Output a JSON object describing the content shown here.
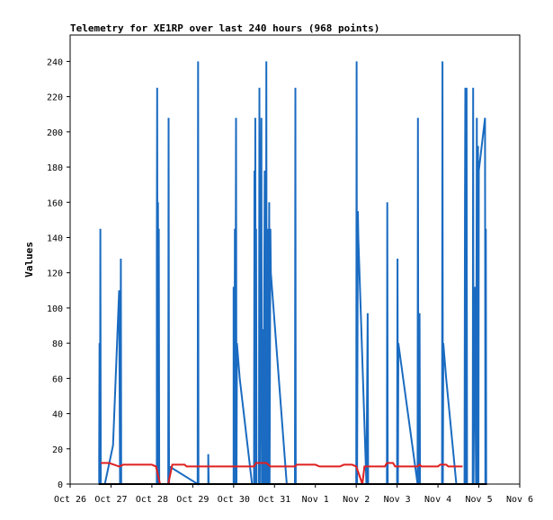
{
  "chart_data": {
    "type": "line",
    "title": "Telemetry for XE1RP over last 240 hours (968 points)",
    "xlabel": "",
    "ylabel": "Values",
    "x_unit": "days",
    "xlim": [
      0,
      11
    ],
    "ylim": [
      0,
      255
    ],
    "x_ticks": [
      {
        "x": 0,
        "label": "Oct 26"
      },
      {
        "x": 1,
        "label": "Oct 27"
      },
      {
        "x": 2,
        "label": "Oct 28"
      },
      {
        "x": 3,
        "label": "Oct 29"
      },
      {
        "x": 4,
        "label": "Oct 30"
      },
      {
        "x": 5,
        "label": "Oct 31"
      },
      {
        "x": 6,
        "label": "Nov 1"
      },
      {
        "x": 7,
        "label": "Nov 2"
      },
      {
        "x": 8,
        "label": "Nov 3"
      },
      {
        "x": 9,
        "label": "Nov 4"
      },
      {
        "x": 10,
        "label": "Nov 5"
      },
      {
        "x": 11,
        "label": "Nov 6"
      }
    ],
    "y_ticks": [
      0,
      20,
      40,
      60,
      80,
      100,
      120,
      140,
      160,
      180,
      200,
      220,
      240
    ],
    "grid": false,
    "legend": "none",
    "series": [
      {
        "color": "#1a6bc1",
        "points": [
          [
            0.71,
            0
          ],
          [
            0.71,
            17
          ],
          [
            0.72,
            80
          ],
          [
            0.73,
            0
          ],
          [
            0.74,
            145
          ],
          [
            0.75,
            0
          ],
          [
            0.85,
            0
          ],
          [
            1.05,
            22
          ],
          [
            1.2,
            110
          ],
          [
            1.22,
            0
          ],
          [
            1.24,
            128
          ],
          [
            1.25,
            0
          ],
          [
            2.12,
            0
          ],
          [
            2.12,
            128
          ],
          [
            2.13,
            225
          ],
          [
            2.14,
            0
          ],
          [
            2.15,
            160
          ],
          [
            2.16,
            0
          ],
          [
            2.17,
            145
          ],
          [
            2.18,
            0
          ],
          [
            2.4,
            0
          ],
          [
            2.41,
            208
          ],
          [
            2.42,
            0
          ],
          [
            2.43,
            10
          ],
          [
            3.12,
            0
          ],
          [
            3.13,
            240
          ],
          [
            3.14,
            0
          ],
          [
            3.38,
            0
          ],
          [
            3.38,
            17
          ],
          [
            3.39,
            0
          ],
          [
            4.0,
            0
          ],
          [
            4.0,
            112
          ],
          [
            4.02,
            0
          ],
          [
            4.03,
            145
          ],
          [
            4.04,
            0
          ],
          [
            4.06,
            208
          ],
          [
            4.07,
            0
          ],
          [
            4.08,
            80
          ],
          [
            4.15,
            60
          ],
          [
            4.45,
            0
          ],
          [
            4.5,
            0
          ],
          [
            4.51,
            178
          ],
          [
            4.52,
            0
          ],
          [
            4.53,
            208
          ],
          [
            4.54,
            0
          ],
          [
            4.55,
            145
          ],
          [
            4.56,
            0
          ],
          [
            4.62,
            0
          ],
          [
            4.63,
            225
          ],
          [
            4.64,
            0
          ],
          [
            4.68,
            208
          ],
          [
            4.69,
            0
          ],
          [
            4.72,
            88
          ],
          [
            4.73,
            0
          ],
          [
            4.76,
            178
          ],
          [
            4.77,
            0
          ],
          [
            4.79,
            0
          ],
          [
            4.8,
            240
          ],
          [
            4.81,
            0
          ],
          [
            4.84,
            145
          ],
          [
            4.85,
            0
          ],
          [
            4.87,
            160
          ],
          [
            4.88,
            0
          ],
          [
            4.9,
            145
          ],
          [
            4.91,
            120
          ],
          [
            5.3,
            0
          ],
          [
            5.5,
            0
          ],
          [
            5.51,
            225
          ],
          [
            5.52,
            0
          ],
          [
            7.0,
            0
          ],
          [
            7.01,
            240
          ],
          [
            7.02,
            0
          ],
          [
            7.04,
            155
          ],
          [
            7.05,
            140
          ],
          [
            7.25,
            0
          ],
          [
            7.28,
            97
          ],
          [
            7.29,
            0
          ],
          [
            7.75,
            0
          ],
          [
            7.76,
            160
          ],
          [
            7.77,
            0
          ],
          [
            8.0,
            0
          ],
          [
            8.01,
            128
          ],
          [
            8.02,
            0
          ],
          [
            8.03,
            80
          ],
          [
            8.5,
            0
          ],
          [
            8.51,
            208
          ],
          [
            8.52,
            0
          ],
          [
            8.55,
            97
          ],
          [
            8.56,
            0
          ],
          [
            9.1,
            0
          ],
          [
            9.11,
            240
          ],
          [
            9.12,
            0
          ],
          [
            9.13,
            80
          ],
          [
            9.2,
            60
          ],
          [
            9.45,
            0
          ],
          [
            9.65,
            0
          ],
          [
            9.66,
            160
          ],
          [
            9.67,
            225
          ],
          [
            9.68,
            0
          ],
          [
            9.7,
            225
          ],
          [
            9.71,
            0
          ],
          [
            9.85,
            0
          ],
          [
            9.86,
            225
          ],
          [
            9.87,
            0
          ],
          [
            9.9,
            112
          ],
          [
            9.93,
            0
          ],
          [
            9.95,
            208
          ],
          [
            9.96,
            0
          ],
          [
            9.98,
            192
          ],
          [
            9.99,
            0
          ],
          [
            10.0,
            178
          ],
          [
            10.15,
            208
          ],
          [
            10.16,
            0
          ],
          [
            10.17,
            145
          ],
          [
            10.18,
            0
          ]
        ]
      },
      {
        "color": "#e02020",
        "points": [
          [
            0.75,
            12
          ],
          [
            0.95,
            12
          ],
          [
            1.2,
            10
          ],
          [
            1.3,
            11
          ],
          [
            2.0,
            11
          ],
          [
            2.1,
            10
          ],
          [
            2.2,
            0
          ],
          [
            2.4,
            0
          ],
          [
            2.5,
            11
          ],
          [
            2.8,
            11
          ],
          [
            2.85,
            10
          ],
          [
            3.3,
            10
          ],
          [
            3.5,
            10
          ],
          [
            4.0,
            10
          ],
          [
            4.5,
            10
          ],
          [
            4.55,
            12
          ],
          [
            4.8,
            12
          ],
          [
            4.9,
            10
          ],
          [
            5.5,
            10
          ],
          [
            5.55,
            11
          ],
          [
            6.0,
            11
          ],
          [
            6.1,
            10
          ],
          [
            6.6,
            10
          ],
          [
            6.7,
            11
          ],
          [
            6.9,
            11
          ],
          [
            7.0,
            10
          ],
          [
            7.15,
            0
          ],
          [
            7.2,
            10
          ],
          [
            7.5,
            10
          ],
          [
            7.7,
            10
          ],
          [
            7.75,
            12
          ],
          [
            7.9,
            12
          ],
          [
            7.95,
            10
          ],
          [
            8.5,
            10
          ],
          [
            8.55,
            11
          ],
          [
            8.6,
            10
          ],
          [
            9.0,
            10
          ],
          [
            9.05,
            11
          ],
          [
            9.2,
            11
          ],
          [
            9.25,
            10
          ],
          [
            9.6,
            10
          ]
        ]
      },
      {
        "color": "#000000",
        "points": [
          [
            0.7,
            0
          ],
          [
            10.2,
            0
          ]
        ]
      }
    ]
  }
}
